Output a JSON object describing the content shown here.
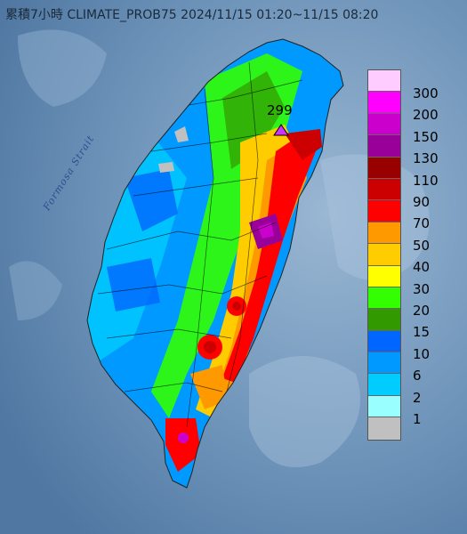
{
  "title": "累積7小時 CLIMATE_PROB75 2024/11/15 01:20~11/15 08:20",
  "strait_label": "Formosa Strait",
  "max_value_label": "299",
  "legend": [
    {
      "label": "300",
      "color": "#ffccff"
    },
    {
      "label": "200",
      "color": "#ff00ff"
    },
    {
      "label": "150",
      "color": "#cc00cc"
    },
    {
      "label": "130",
      "color": "#990099"
    },
    {
      "label": "110",
      "color": "#990000"
    },
    {
      "label": "90",
      "color": "#cc0000"
    },
    {
      "label": "70",
      "color": "#ff0000"
    },
    {
      "label": "50",
      "color": "#ff9900"
    },
    {
      "label": "40",
      "color": "#ffcc00"
    },
    {
      "label": "30",
      "color": "#ffff00"
    },
    {
      "label": "20",
      "color": "#33ff00"
    },
    {
      "label": "15",
      "color": "#339900"
    },
    {
      "label": "10",
      "color": "#0066ff"
    },
    {
      "label": "6",
      "color": "#0099ff"
    },
    {
      "label": "2",
      "color": "#00ccff"
    },
    {
      "label": "1",
      "color": "#99ffff"
    },
    {
      "label": "",
      "color": "#c0c0c0"
    }
  ],
  "colors": {
    "sea": "#6a8fb3",
    "sea_light": "#8fb0cf"
  }
}
